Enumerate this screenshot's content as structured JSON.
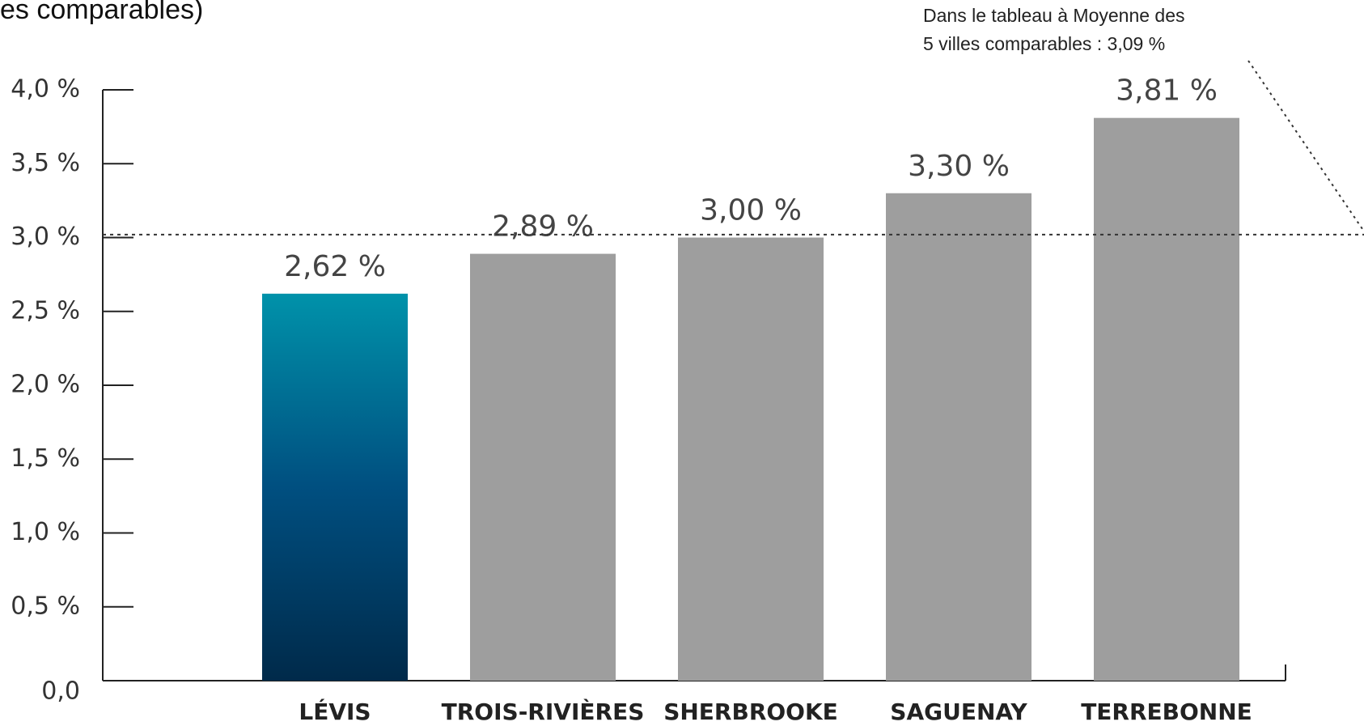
{
  "chart_data": {
    "type": "bar",
    "title": "es comparables)",
    "annotation": [
      "Dans le tableau à Moyenne des",
      "5 villes comparables : 3,09 %"
    ],
    "categories": [
      "LÉVIS",
      "TROIS-RIVIÈRES",
      "SHERBROOKE",
      "SAGUENAY",
      "TERREBONNE"
    ],
    "values": [
      2.62,
      2.89,
      3.0,
      3.3,
      3.81
    ],
    "value_labels": [
      "2,62 %",
      "2,89 %",
      "3,00 %",
      "3,30 %",
      "3,81 %"
    ],
    "colors": [
      "#0092aa",
      "#9e9e9e",
      "#9e9e9e",
      "#9e9e9e",
      "#9e9e9e"
    ],
    "reference_line": 3.02,
    "ylim": [
      0,
      4
    ],
    "yticks": [
      {
        "value": 0,
        "label": "0,0"
      },
      {
        "value": 0.5,
        "label": "0,5 %"
      },
      {
        "value": 1,
        "label": "1,0 %"
      },
      {
        "value": 1.5,
        "label": "1,5 %"
      },
      {
        "value": 2,
        "label": "2,0 %"
      },
      {
        "value": 2.5,
        "label": "2,5 %"
      },
      {
        "value": 3,
        "label": "3,0 %"
      },
      {
        "value": 3.5,
        "label": "3,5 %"
      },
      {
        "value": 4,
        "label": "4,0 %"
      }
    ]
  }
}
